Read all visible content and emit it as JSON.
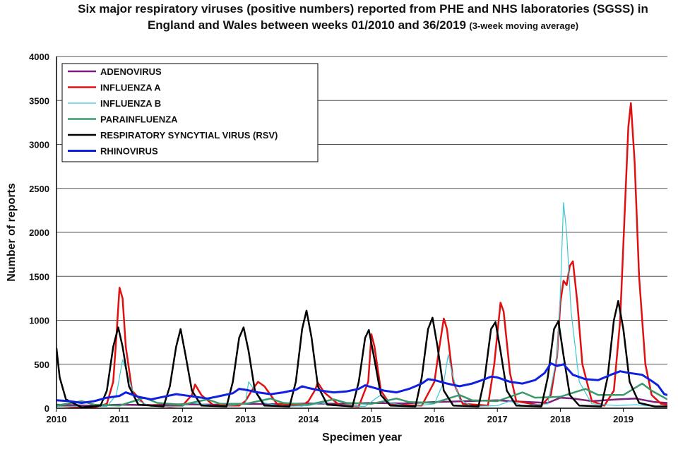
{
  "chart_data": {
    "type": "line",
    "title": "Six major respiratory viruses (positive numbers) reported from PHE and NHS laboratories (SGSS) in England and Wales between weeks 01/2010 and 36/2019",
    "title_suffix": "(3-week moving average)",
    "xlabel": "Specimen year",
    "ylabel": "Number of reports",
    "xlim": [
      2010.0,
      2019.7
    ],
    "ylim": [
      0,
      4000
    ],
    "x_ticks": [
      2010,
      2011,
      2012,
      2013,
      2014,
      2015,
      2016,
      2017,
      2018,
      2019
    ],
    "y_ticks": [
      0,
      500,
      1000,
      1500,
      2000,
      2500,
      3000,
      3500,
      4000
    ],
    "grid": "horizontal",
    "legend_position": "top-left",
    "series": [
      {
        "name": "ADENOVIRUS",
        "color": "#7b1f7a",
        "width": 2.5,
        "points": [
          [
            2010.0,
            40
          ],
          [
            2010.5,
            30
          ],
          [
            2011.0,
            40
          ],
          [
            2011.5,
            35
          ],
          [
            2012.0,
            45
          ],
          [
            2012.5,
            40
          ],
          [
            2013.0,
            50
          ],
          [
            2013.5,
            45
          ],
          [
            2014.0,
            55
          ],
          [
            2014.5,
            50
          ],
          [
            2015.0,
            60
          ],
          [
            2015.5,
            55
          ],
          [
            2016.0,
            70
          ],
          [
            2016.5,
            80
          ],
          [
            2017.0,
            90
          ],
          [
            2017.2,
            80
          ],
          [
            2017.5,
            70
          ],
          [
            2017.8,
            60
          ],
          [
            2018.0,
            120
          ],
          [
            2018.2,
            110
          ],
          [
            2018.5,
            80
          ],
          [
            2018.9,
            100
          ],
          [
            2019.2,
            110
          ],
          [
            2019.5,
            70
          ],
          [
            2019.7,
            60
          ]
        ]
      },
      {
        "name": "INFLUENZA A",
        "color": "#e01010",
        "width": 2.5,
        "points": [
          [
            2010.0,
            30
          ],
          [
            2010.3,
            15
          ],
          [
            2010.6,
            10
          ],
          [
            2010.8,
            50
          ],
          [
            2010.9,
            300
          ],
          [
            2010.95,
            800
          ],
          [
            2011.0,
            1370
          ],
          [
            2011.05,
            1250
          ],
          [
            2011.1,
            700
          ],
          [
            2011.2,
            200
          ],
          [
            2011.4,
            40
          ],
          [
            2011.8,
            20
          ],
          [
            2012.0,
            30
          ],
          [
            2012.15,
            150
          ],
          [
            2012.2,
            270
          ],
          [
            2012.3,
            150
          ],
          [
            2012.5,
            30
          ],
          [
            2012.9,
            30
          ],
          [
            2013.0,
            80
          ],
          [
            2013.1,
            200
          ],
          [
            2013.2,
            300
          ],
          [
            2013.3,
            250
          ],
          [
            2013.5,
            50
          ],
          [
            2013.9,
            30
          ],
          [
            2014.0,
            80
          ],
          [
            2014.1,
            200
          ],
          [
            2014.15,
            290
          ],
          [
            2014.25,
            180
          ],
          [
            2014.5,
            30
          ],
          [
            2014.8,
            20
          ],
          [
            2014.95,
            300
          ],
          [
            2015.0,
            840
          ],
          [
            2015.05,
            700
          ],
          [
            2015.15,
            200
          ],
          [
            2015.3,
            40
          ],
          [
            2015.8,
            30
          ],
          [
            2016.0,
            300
          ],
          [
            2016.08,
            700
          ],
          [
            2016.15,
            1020
          ],
          [
            2016.2,
            900
          ],
          [
            2016.3,
            300
          ],
          [
            2016.45,
            50
          ],
          [
            2016.85,
            30
          ],
          [
            2016.95,
            500
          ],
          [
            2017.05,
            1200
          ],
          [
            2017.1,
            1100
          ],
          [
            2017.2,
            400
          ],
          [
            2017.3,
            80
          ],
          [
            2017.7,
            30
          ],
          [
            2017.85,
            150
          ],
          [
            2017.95,
            600
          ],
          [
            2018.0,
            1200
          ],
          [
            2018.05,
            1450
          ],
          [
            2018.1,
            1400
          ],
          [
            2018.15,
            1620
          ],
          [
            2018.2,
            1670
          ],
          [
            2018.27,
            1200
          ],
          [
            2018.35,
            500
          ],
          [
            2018.5,
            80
          ],
          [
            2018.7,
            30
          ],
          [
            2018.85,
            200
          ],
          [
            2018.95,
            1000
          ],
          [
            2019.02,
            2200
          ],
          [
            2019.08,
            3200
          ],
          [
            2019.12,
            3470
          ],
          [
            2019.18,
            2800
          ],
          [
            2019.25,
            1500
          ],
          [
            2019.35,
            500
          ],
          [
            2019.45,
            150
          ],
          [
            2019.6,
            50
          ],
          [
            2019.7,
            40
          ]
        ]
      },
      {
        "name": "INFLUENZA B",
        "color": "#3cc8d8",
        "width": 1.2,
        "points": [
          [
            2010.0,
            20
          ],
          [
            2010.8,
            20
          ],
          [
            2010.95,
            150
          ],
          [
            2011.05,
            550
          ],
          [
            2011.12,
            400
          ],
          [
            2011.25,
            100
          ],
          [
            2011.5,
            20
          ],
          [
            2012.0,
            20
          ],
          [
            2012.1,
            60
          ],
          [
            2012.3,
            50
          ],
          [
            2012.6,
            20
          ],
          [
            2013.0,
            50
          ],
          [
            2013.05,
            300
          ],
          [
            2013.15,
            200
          ],
          [
            2013.3,
            60
          ],
          [
            2013.6,
            20
          ],
          [
            2014.0,
            30
          ],
          [
            2014.2,
            60
          ],
          [
            2014.4,
            30
          ],
          [
            2014.9,
            20
          ],
          [
            2015.05,
            100
          ],
          [
            2015.15,
            150
          ],
          [
            2015.3,
            60
          ],
          [
            2015.6,
            20
          ],
          [
            2016.0,
            50
          ],
          [
            2016.15,
            300
          ],
          [
            2016.22,
            610
          ],
          [
            2016.28,
            400
          ],
          [
            2016.4,
            100
          ],
          [
            2016.6,
            20
          ],
          [
            2017.0,
            30
          ],
          [
            2017.2,
            80
          ],
          [
            2017.4,
            30
          ],
          [
            2017.8,
            50
          ],
          [
            2017.95,
            600
          ],
          [
            2018.0,
            1300
          ],
          [
            2018.05,
            2340
          ],
          [
            2018.1,
            2000
          ],
          [
            2018.17,
            1100
          ],
          [
            2018.3,
            300
          ],
          [
            2018.5,
            50
          ],
          [
            2018.9,
            30
          ],
          [
            2019.2,
            40
          ],
          [
            2019.5,
            20
          ],
          [
            2019.7,
            15
          ]
        ]
      },
      {
        "name": "PARAINFLUENZA",
        "color": "#3a9a6a",
        "width": 2.5,
        "points": [
          [
            2010.0,
            30
          ],
          [
            2010.4,
            80
          ],
          [
            2010.6,
            40
          ],
          [
            2011.0,
            30
          ],
          [
            2011.4,
            120
          ],
          [
            2011.6,
            60
          ],
          [
            2012.0,
            40
          ],
          [
            2012.4,
            100
          ],
          [
            2012.6,
            50
          ],
          [
            2013.0,
            50
          ],
          [
            2013.4,
            110
          ],
          [
            2013.6,
            60
          ],
          [
            2014.0,
            40
          ],
          [
            2014.4,
            100
          ],
          [
            2014.6,
            60
          ],
          [
            2015.0,
            50
          ],
          [
            2015.4,
            110
          ],
          [
            2015.6,
            70
          ],
          [
            2016.0,
            60
          ],
          [
            2016.4,
            150
          ],
          [
            2016.6,
            90
          ],
          [
            2017.0,
            80
          ],
          [
            2017.4,
            180
          ],
          [
            2017.6,
            120
          ],
          [
            2018.0,
            130
          ],
          [
            2018.4,
            220
          ],
          [
            2018.6,
            150
          ],
          [
            2019.0,
            150
          ],
          [
            2019.3,
            280
          ],
          [
            2019.45,
            200
          ],
          [
            2019.7,
            100
          ]
        ]
      },
      {
        "name": "RESPIRATORY SYNCYTIAL VIRUS (RSV)",
        "color": "#000000",
        "width": 2.5,
        "points": [
          [
            2010.0,
            680
          ],
          [
            2010.05,
            350
          ],
          [
            2010.15,
            100
          ],
          [
            2010.4,
            10
          ],
          [
            2010.7,
            30
          ],
          [
            2010.8,
            200
          ],
          [
            2010.9,
            700
          ],
          [
            2010.98,
            920
          ],
          [
            2011.05,
            700
          ],
          [
            2011.15,
            250
          ],
          [
            2011.3,
            40
          ],
          [
            2011.7,
            20
          ],
          [
            2011.8,
            250
          ],
          [
            2011.9,
            700
          ],
          [
            2011.97,
            900
          ],
          [
            2012.05,
            600
          ],
          [
            2012.15,
            200
          ],
          [
            2012.3,
            30
          ],
          [
            2012.7,
            20
          ],
          [
            2012.8,
            300
          ],
          [
            2012.9,
            800
          ],
          [
            2012.97,
            920
          ],
          [
            2013.05,
            650
          ],
          [
            2013.15,
            200
          ],
          [
            2013.3,
            30
          ],
          [
            2013.7,
            20
          ],
          [
            2013.8,
            300
          ],
          [
            2013.9,
            900
          ],
          [
            2013.97,
            1110
          ],
          [
            2014.05,
            800
          ],
          [
            2014.15,
            250
          ],
          [
            2014.3,
            40
          ],
          [
            2014.7,
            20
          ],
          [
            2014.8,
            300
          ],
          [
            2014.9,
            800
          ],
          [
            2014.96,
            890
          ],
          [
            2015.05,
            550
          ],
          [
            2015.15,
            150
          ],
          [
            2015.3,
            30
          ],
          [
            2015.7,
            20
          ],
          [
            2015.8,
            350
          ],
          [
            2015.9,
            900
          ],
          [
            2015.97,
            1030
          ],
          [
            2016.05,
            700
          ],
          [
            2016.15,
            200
          ],
          [
            2016.3,
            30
          ],
          [
            2016.7,
            20
          ],
          [
            2016.8,
            350
          ],
          [
            2016.9,
            900
          ],
          [
            2016.97,
            980
          ],
          [
            2017.05,
            650
          ],
          [
            2017.15,
            200
          ],
          [
            2017.3,
            30
          ],
          [
            2017.7,
            20
          ],
          [
            2017.8,
            350
          ],
          [
            2017.9,
            900
          ],
          [
            2017.97,
            990
          ],
          [
            2018.05,
            600
          ],
          [
            2018.15,
            150
          ],
          [
            2018.3,
            30
          ],
          [
            2018.65,
            20
          ],
          [
            2018.75,
            350
          ],
          [
            2018.85,
            1000
          ],
          [
            2018.92,
            1220
          ],
          [
            2019.0,
            900
          ],
          [
            2019.1,
            300
          ],
          [
            2019.25,
            60
          ],
          [
            2019.5,
            20
          ],
          [
            2019.7,
            20
          ]
        ]
      },
      {
        "name": "RHINOVIRUS",
        "color": "#1020e0",
        "width": 3.0,
        "points": [
          [
            2010.0,
            90
          ],
          [
            2010.2,
            80
          ],
          [
            2010.4,
            60
          ],
          [
            2010.6,
            80
          ],
          [
            2010.8,
            120
          ],
          [
            2011.0,
            140
          ],
          [
            2011.1,
            180
          ],
          [
            2011.3,
            130
          ],
          [
            2011.5,
            100
          ],
          [
            2011.7,
            130
          ],
          [
            2011.9,
            160
          ],
          [
            2012.0,
            150
          ],
          [
            2012.2,
            130
          ],
          [
            2012.4,
            110
          ],
          [
            2012.6,
            140
          ],
          [
            2012.8,
            170
          ],
          [
            2012.9,
            220
          ],
          [
            2013.0,
            210
          ],
          [
            2013.2,
            180
          ],
          [
            2013.4,
            160
          ],
          [
            2013.6,
            180
          ],
          [
            2013.8,
            210
          ],
          [
            2013.9,
            250
          ],
          [
            2014.0,
            230
          ],
          [
            2014.2,
            200
          ],
          [
            2014.4,
            180
          ],
          [
            2014.6,
            190
          ],
          [
            2014.8,
            220
          ],
          [
            2014.9,
            260
          ],
          [
            2015.0,
            240
          ],
          [
            2015.2,
            200
          ],
          [
            2015.4,
            180
          ],
          [
            2015.6,
            220
          ],
          [
            2015.8,
            280
          ],
          [
            2015.9,
            330
          ],
          [
            2016.0,
            320
          ],
          [
            2016.2,
            280
          ],
          [
            2016.4,
            250
          ],
          [
            2016.6,
            280
          ],
          [
            2016.8,
            330
          ],
          [
            2016.9,
            360
          ],
          [
            2017.0,
            350
          ],
          [
            2017.2,
            300
          ],
          [
            2017.4,
            280
          ],
          [
            2017.6,
            320
          ],
          [
            2017.75,
            400
          ],
          [
            2017.85,
            510
          ],
          [
            2017.95,
            480
          ],
          [
            2018.05,
            500
          ],
          [
            2018.2,
            380
          ],
          [
            2018.4,
            330
          ],
          [
            2018.6,
            320
          ],
          [
            2018.8,
            380
          ],
          [
            2018.95,
            420
          ],
          [
            2019.1,
            400
          ],
          [
            2019.3,
            380
          ],
          [
            2019.45,
            310
          ],
          [
            2019.55,
            260
          ],
          [
            2019.65,
            160
          ],
          [
            2019.7,
            150
          ]
        ]
      }
    ]
  }
}
